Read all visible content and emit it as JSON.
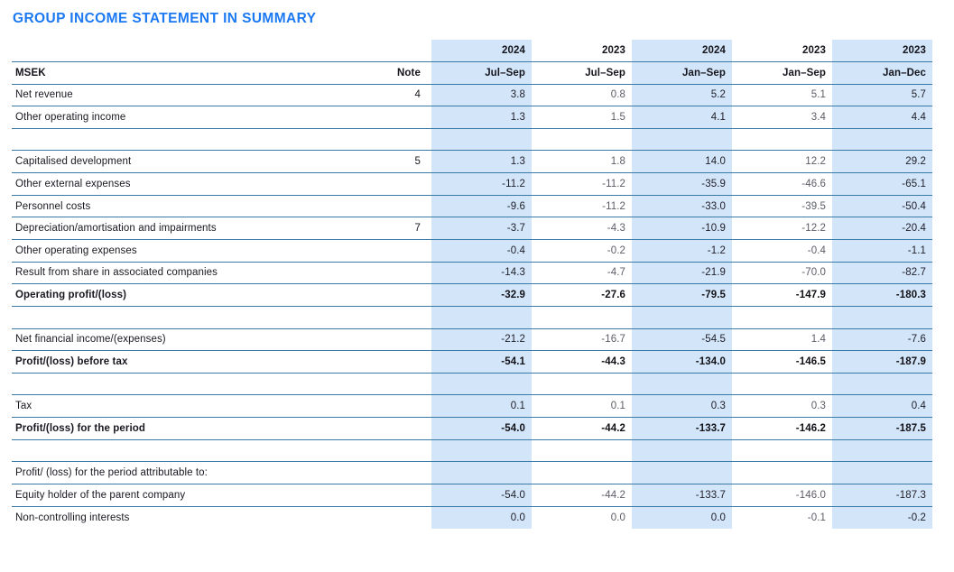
{
  "title": "GROUP INCOME STATEMENT IN SUMMARY",
  "columns": {
    "label_header": "MSEK",
    "note_header": "Note",
    "years": [
      "2024",
      "2023",
      "2024",
      "2023",
      "2023"
    ],
    "periods": [
      "Jul–Sep",
      "Jul–Sep",
      "Jan–Sep",
      "Jan–Sep",
      "Jan–Dec"
    ],
    "highlighted": [
      true,
      false,
      true,
      false,
      true
    ]
  },
  "rows": [
    {
      "label": "Net revenue",
      "note": "4",
      "values": [
        "3.8",
        "0.8",
        "5.2",
        "5.1",
        "5.7"
      ],
      "bold": false
    },
    {
      "label": "Other operating income",
      "note": "",
      "values": [
        "1.3",
        "1.5",
        "4.1",
        "3.4",
        "4.4"
      ],
      "bold": false
    },
    {
      "spacer": true
    },
    {
      "label": "Capitalised development",
      "note": "5",
      "values": [
        "1.3",
        "1.8",
        "14.0",
        "12.2",
        "29.2"
      ],
      "bold": false
    },
    {
      "label": "Other external expenses",
      "note": "",
      "values": [
        "-11.2",
        "-11.2",
        "-35.9",
        "-46.6",
        "-65.1"
      ],
      "bold": false
    },
    {
      "label": "Personnel costs",
      "note": "",
      "values": [
        "-9.6",
        "-11.2",
        "-33.0",
        "-39.5",
        "-50.4"
      ],
      "bold": false
    },
    {
      "label": "Depreciation/amortisation and impairments",
      "note": "7",
      "values": [
        "-3.7",
        "-4.3",
        "-10.9",
        "-12.2",
        "-20.4"
      ],
      "bold": false
    },
    {
      "label": "Other operating expenses",
      "note": "",
      "values": [
        "-0.4",
        "-0.2",
        "-1.2",
        "-0.4",
        "-1.1"
      ],
      "bold": false
    },
    {
      "label": "Result from share in associated companies",
      "note": "",
      "values": [
        "-14.3",
        "-4.7",
        "-21.9",
        "-70.0",
        "-82.7"
      ],
      "bold": false
    },
    {
      "label": "Operating profit/(loss)",
      "note": "",
      "values": [
        "-32.9",
        "-27.6",
        "-79.5",
        "-147.9",
        "-180.3"
      ],
      "bold": true
    },
    {
      "spacer": true
    },
    {
      "label": "Net financial income/(expenses)",
      "note": "",
      "values": [
        "-21.2",
        "-16.7",
        "-54.5",
        "1.4",
        "-7.6"
      ],
      "bold": false
    },
    {
      "label": "Profit/(loss) before tax",
      "note": "",
      "values": [
        "-54.1",
        "-44.3",
        "-134.0",
        "-146.5",
        "-187.9"
      ],
      "bold": true
    },
    {
      "spacer": true
    },
    {
      "label": "Tax",
      "note": "",
      "values": [
        "0.1",
        "0.1",
        "0.3",
        "0.3",
        "0.4"
      ],
      "bold": false
    },
    {
      "label": "Profit/(loss) for the period",
      "note": "",
      "values": [
        "-54.0",
        "-44.2",
        "-133.7",
        "-146.2",
        "-187.5"
      ],
      "bold": true
    },
    {
      "spacer": true
    },
    {
      "label": "Profit/ (loss) for the period attributable to:",
      "note": "",
      "values": [
        "",
        "",
        "",
        "",
        ""
      ],
      "bold": false
    },
    {
      "label": "Equity holder of the parent company",
      "note": "",
      "values": [
        "-54.0",
        "-44.2",
        "-133.7",
        "-146.0",
        "-187.3"
      ],
      "bold": false
    },
    {
      "label": "Non-controlling interests",
      "note": "",
      "values": [
        "0.0",
        "0.0",
        "0.0",
        "-0.1",
        "-0.2"
      ],
      "bold": false,
      "last": true
    }
  ],
  "colors": {
    "title_blue": "#1c79f2",
    "band_blue": "#d3e5f9",
    "border_blue": "#3a7aa6",
    "text_dark": "#181820",
    "text_gray": "#5d5d68"
  }
}
